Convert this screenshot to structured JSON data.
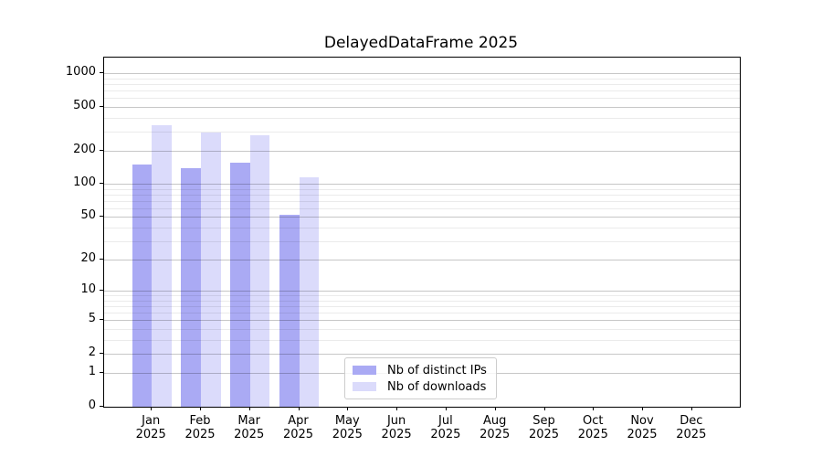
{
  "chart_data": {
    "type": "bar",
    "title": "DelayedDataFrame 2025",
    "categories": [
      "Jan",
      "Feb",
      "Mar",
      "Apr",
      "May",
      "Jun",
      "Jul",
      "Aug",
      "Sep",
      "Oct",
      "Nov",
      "Dec"
    ],
    "x_year": "2025",
    "series": [
      {
        "name": "Nb of distinct IPs",
        "color": "#aaaaf4",
        "values": [
          150,
          140,
          155,
          52,
          null,
          null,
          null,
          null,
          null,
          null,
          null,
          null
        ]
      },
      {
        "name": "Nb of downloads",
        "color": "#dbdbfb",
        "values": [
          340,
          295,
          275,
          116,
          null,
          null,
          null,
          null,
          null,
          null,
          null,
          null
        ]
      }
    ],
    "y_scale": "log1p",
    "y_ticks": [
      0,
      1,
      2,
      5,
      10,
      20,
      50,
      100,
      200,
      500,
      1000
    ],
    "y_minor_gridlines": [
      3,
      4,
      6,
      7,
      8,
      9,
      30,
      40,
      60,
      70,
      80,
      90,
      300,
      400,
      600,
      700,
      800,
      900
    ],
    "ylim": [
      0,
      1385
    ],
    "xlim": [
      -0.97,
      11.97
    ],
    "bar_width": 0.4,
    "bar_offsets": [
      -0.2,
      0.2
    ],
    "grid": "horizontal-major-and-minor",
    "legend_position": "lower center-left"
  }
}
